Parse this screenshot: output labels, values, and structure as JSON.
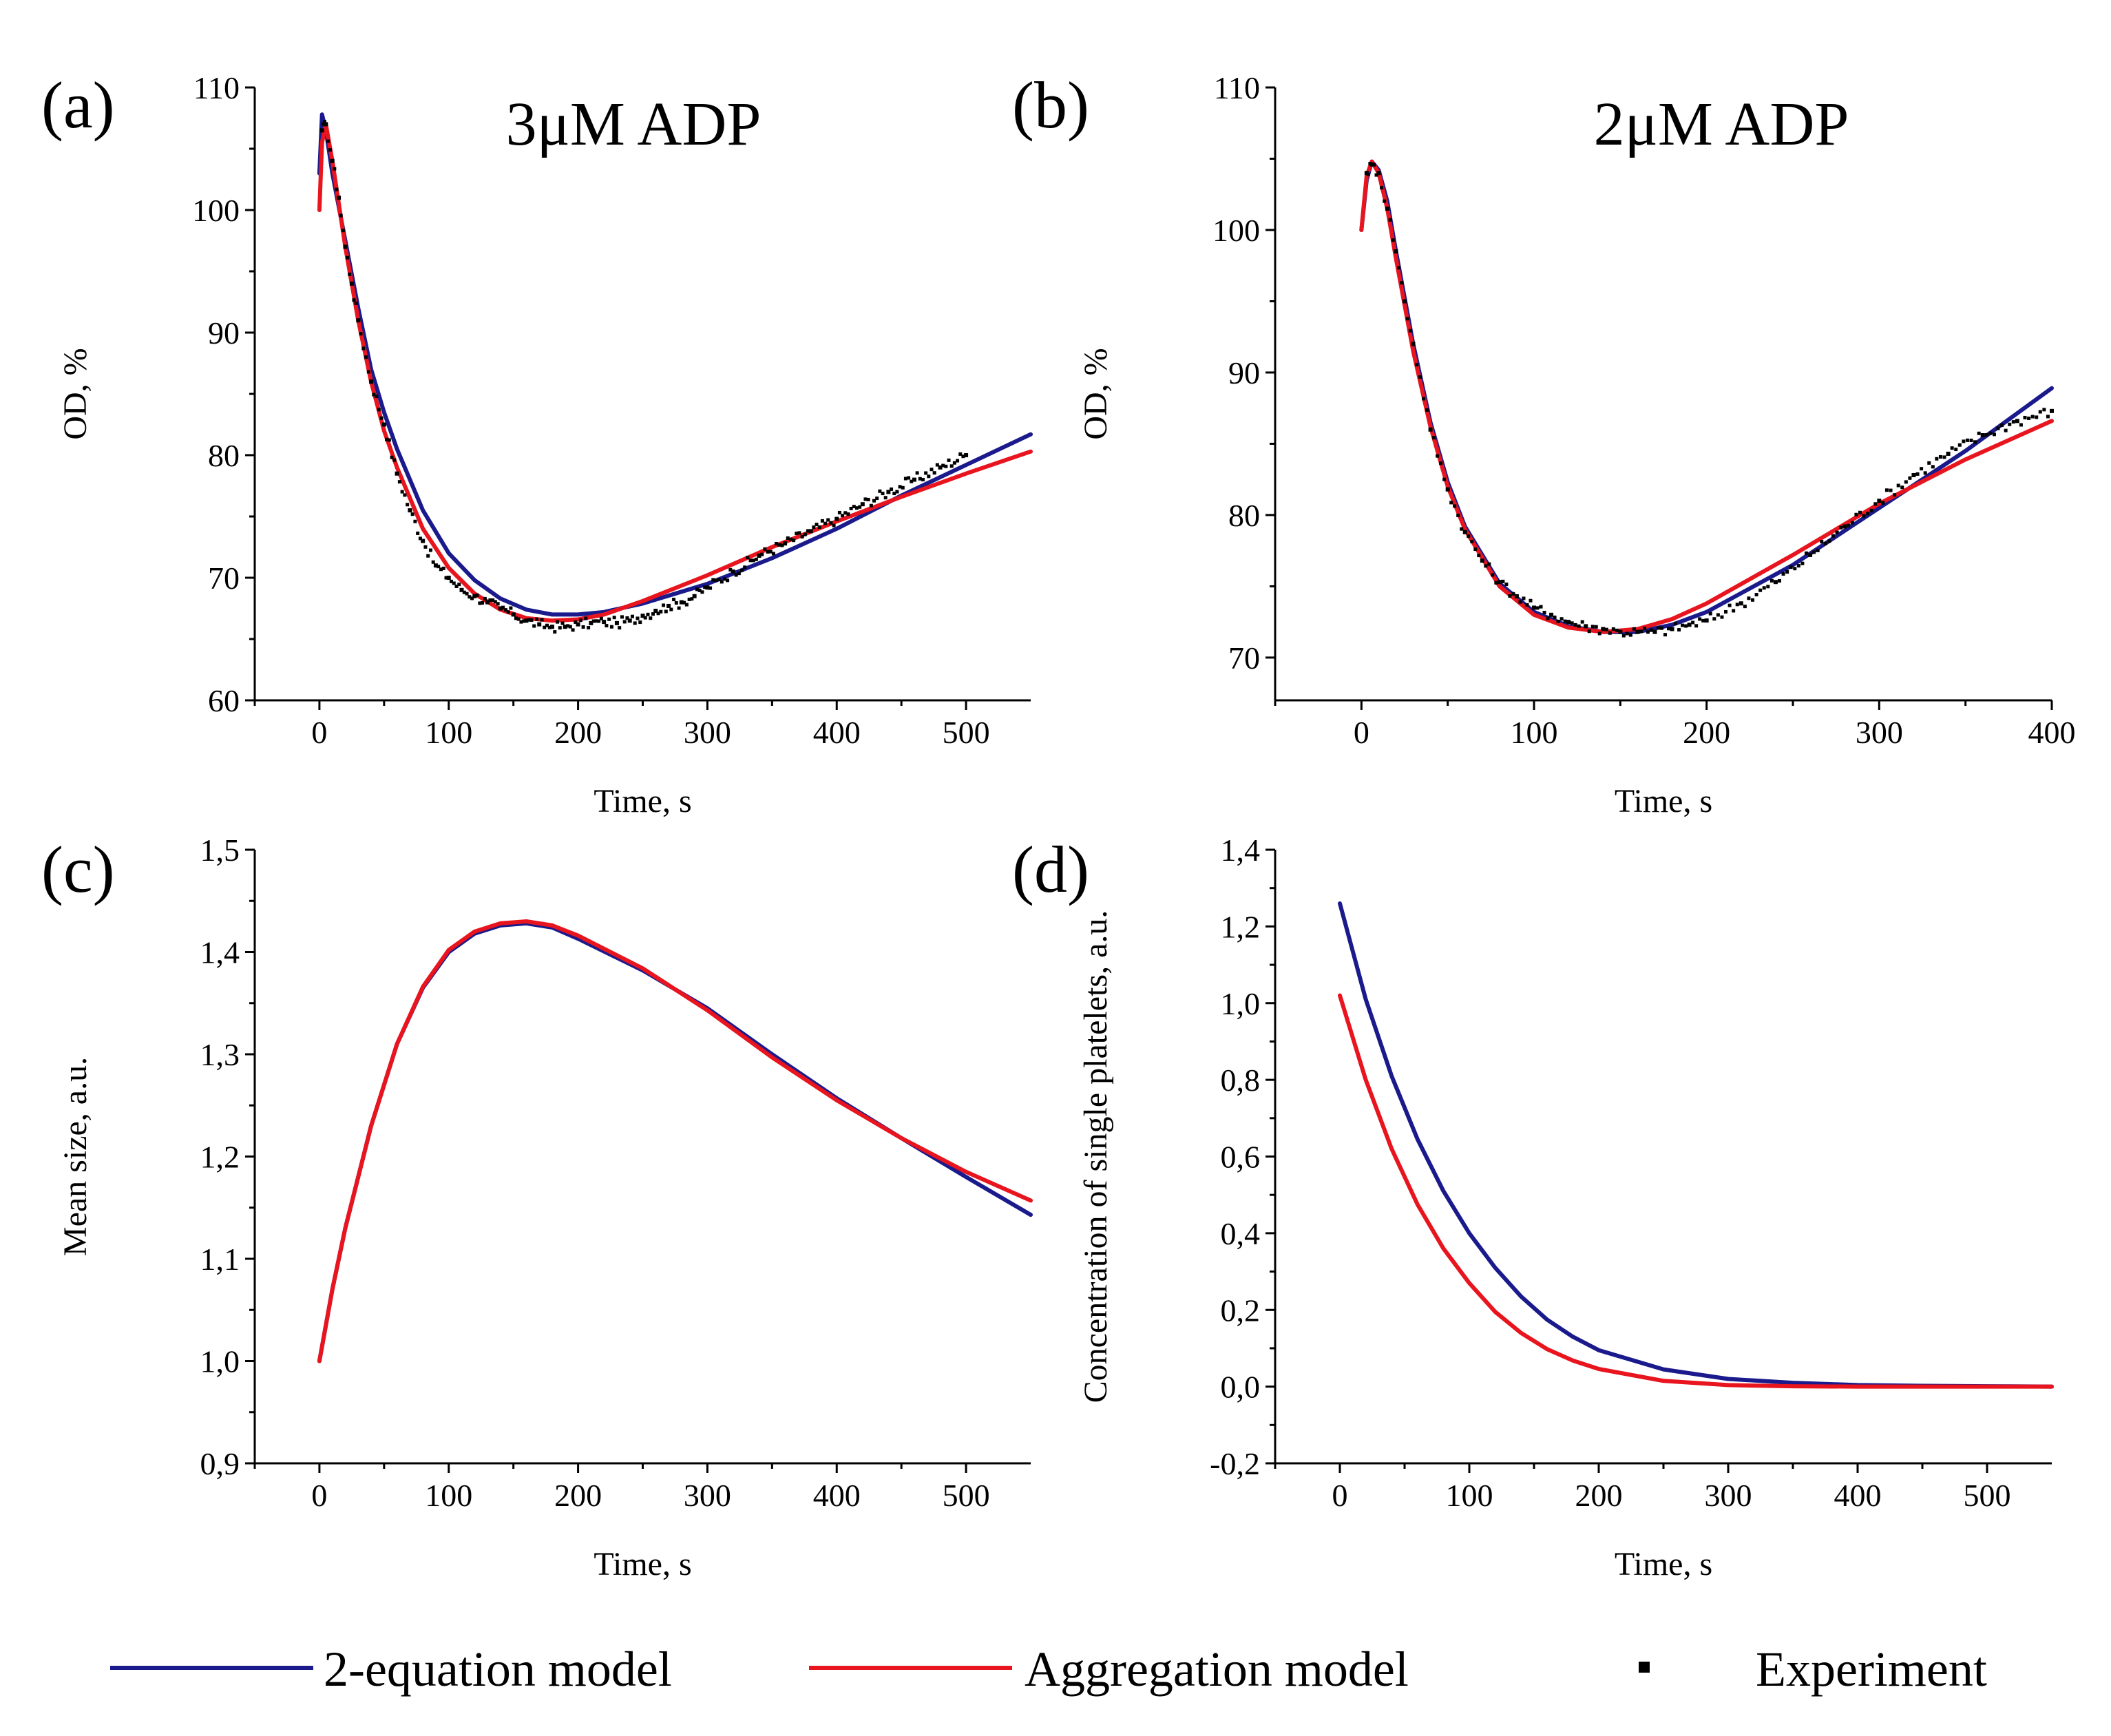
{
  "colors": {
    "blue": "#1a1a8c",
    "red": "#e8141e",
    "black": "#000000"
  },
  "legend": [
    {
      "label": "2-equation model",
      "color": "#1a1a8c",
      "kind": "line"
    },
    {
      "label": "Aggregation model",
      "color": "#e8141e",
      "kind": "line"
    },
    {
      "label": "Experiment",
      "color": "#000000",
      "kind": "marker"
    }
  ],
  "chart_data": [
    {
      "id": "a",
      "type": "line",
      "panel_label": "(a)",
      "title": "3μM ADP",
      "xlabel": "Time, s",
      "ylabel": "OD, %",
      "xlim": [
        -50,
        550
      ],
      "ylim": [
        60,
        110
      ],
      "xticks": [
        "0",
        "100",
        "200",
        "300",
        "400",
        "500"
      ],
      "yticks": [
        "60",
        "70",
        "80",
        "90",
        "100",
        "110"
      ],
      "series": [
        {
          "name": "2-equation model",
          "color": "#1a1a8c",
          "x": [
            0,
            2,
            5,
            10,
            20,
            30,
            40,
            50,
            60,
            80,
            100,
            120,
            140,
            160,
            180,
            200,
            220,
            250,
            300,
            350,
            400,
            450,
            500,
            550
          ],
          "y": [
            103,
            107.8,
            106.5,
            103,
            97.5,
            92,
            87,
            83.5,
            80.5,
            75.5,
            72,
            69.8,
            68.3,
            67.4,
            67,
            67,
            67.2,
            67.9,
            69.5,
            71.6,
            74,
            76.7,
            79.2,
            81.7
          ]
        },
        {
          "name": "Aggregation model",
          "color": "#e8141e",
          "x": [
            0,
            2,
            5,
            10,
            20,
            30,
            40,
            50,
            60,
            80,
            100,
            120,
            140,
            160,
            180,
            200,
            220,
            250,
            300,
            350,
            400,
            450,
            500,
            550
          ],
          "y": [
            100,
            105.5,
            107,
            104,
            97,
            91,
            86,
            82,
            79,
            74,
            70.8,
            68.7,
            67.4,
            66.7,
            66.5,
            66.6,
            67,
            68.1,
            70.2,
            72.5,
            74.6,
            76.6,
            78.5,
            80.3
          ]
        },
        {
          "name": "Experiment",
          "color": "#000000",
          "marker": "point",
          "x": [
            2,
            5,
            10,
            15,
            20,
            25,
            30,
            40,
            50,
            60,
            70,
            80,
            90,
            100,
            110,
            120,
            130,
            140,
            150,
            160,
            170,
            180,
            190,
            200,
            210,
            220,
            230,
            240,
            250,
            260,
            270,
            280,
            290,
            300,
            320,
            340,
            360,
            380,
            400,
            420,
            440,
            460,
            480,
            500
          ],
          "y": [
            106.5,
            107,
            104,
            101,
            97,
            94,
            91,
            86,
            82.5,
            78.5,
            75.5,
            73,
            71,
            70,
            69,
            68.5,
            68,
            67.5,
            67,
            66.5,
            66.2,
            66,
            66,
            66.2,
            66.3,
            66.4,
            66.3,
            66.5,
            66.9,
            67.3,
            67.7,
            68,
            68.5,
            69.2,
            70.5,
            71.8,
            72.8,
            73.8,
            74.8,
            76,
            77,
            78,
            79,
            80
          ]
        }
      ]
    },
    {
      "id": "b",
      "type": "line",
      "panel_label": "(b)",
      "title": "2μM ADP",
      "xlabel": "Time, s",
      "ylabel": "OD, %",
      "xlim": [
        -50,
        400
      ],
      "ylim": [
        67,
        110
      ],
      "xticks": [
        "0",
        "100",
        "200",
        "300",
        "400"
      ],
      "yticks": [
        "70",
        "80",
        "90",
        "100",
        "110"
      ],
      "series": [
        {
          "name": "2-equation model",
          "color": "#1a1a8c",
          "x": [
            0,
            3,
            6,
            10,
            15,
            20,
            30,
            40,
            50,
            60,
            80,
            100,
            120,
            140,
            160,
            180,
            200,
            250,
            300,
            350,
            400
          ],
          "y": [
            100,
            103.5,
            104.8,
            104.2,
            102,
            98.5,
            92,
            86.5,
            82.3,
            79.2,
            75.2,
            73.2,
            72.2,
            71.8,
            71.8,
            72.3,
            73.2,
            76.5,
            80.5,
            84.5,
            88.9
          ]
        },
        {
          "name": "Aggregation model",
          "color": "#e8141e",
          "x": [
            0,
            3,
            6,
            10,
            15,
            20,
            30,
            40,
            50,
            60,
            80,
            100,
            120,
            140,
            160,
            180,
            200,
            250,
            300,
            350,
            400
          ],
          "y": [
            100,
            103.8,
            104.8,
            104,
            101.5,
            98,
            91.5,
            86.2,
            82,
            79,
            75,
            73,
            72.1,
            71.8,
            72,
            72.7,
            73.8,
            77.2,
            80.8,
            83.9,
            86.6
          ]
        },
        {
          "name": "Experiment",
          "color": "#000000",
          "marker": "point",
          "x": [
            3,
            6,
            10,
            15,
            20,
            25,
            30,
            40,
            50,
            60,
            70,
            80,
            90,
            100,
            110,
            120,
            130,
            140,
            150,
            160,
            170,
            180,
            190,
            200,
            220,
            240,
            260,
            280,
            300,
            320,
            340,
            360,
            380,
            400
          ],
          "y": [
            104,
            104.6,
            104,
            101.5,
            98.5,
            95,
            92,
            86,
            81.8,
            78.8,
            76.8,
            75.3,
            74.3,
            73.5,
            73,
            72.5,
            72.2,
            72,
            71.8,
            71.8,
            71.8,
            72,
            72.3,
            72.6,
            73.8,
            75.3,
            77.2,
            79.2,
            81,
            82.8,
            84.3,
            85.6,
            86.6,
            87.3
          ]
        }
      ]
    },
    {
      "id": "c",
      "type": "line",
      "panel_label": "(c)",
      "title": "",
      "xlabel": "Time, s",
      "ylabel": "Mean size, a.u.",
      "xlim": [
        -50,
        550
      ],
      "ylim": [
        0.9,
        1.5
      ],
      "xticks": [
        "0",
        "100",
        "200",
        "300",
        "400",
        "500"
      ],
      "yticks": [
        "0,9",
        "1,0",
        "1,1",
        "1,2",
        "1,3",
        "1,4",
        "1,5"
      ],
      "series": [
        {
          "name": "2-equation model",
          "color": "#1a1a8c",
          "x": [
            0,
            10,
            20,
            40,
            60,
            80,
            100,
            120,
            140,
            160,
            180,
            200,
            250,
            300,
            350,
            400,
            450,
            500,
            550
          ],
          "y": [
            1.0,
            1.07,
            1.13,
            1.23,
            1.31,
            1.365,
            1.4,
            1.418,
            1.426,
            1.428,
            1.424,
            1.413,
            1.382,
            1.345,
            1.3,
            1.257,
            1.218,
            1.18,
            1.143
          ]
        },
        {
          "name": "Aggregation model",
          "color": "#e8141e",
          "x": [
            0,
            10,
            20,
            40,
            60,
            80,
            100,
            120,
            140,
            160,
            180,
            200,
            250,
            300,
            350,
            400,
            450,
            500,
            550
          ],
          "y": [
            1.0,
            1.07,
            1.13,
            1.23,
            1.31,
            1.366,
            1.402,
            1.42,
            1.428,
            1.43,
            1.426,
            1.416,
            1.384,
            1.343,
            1.297,
            1.255,
            1.218,
            1.185,
            1.157
          ]
        }
      ]
    },
    {
      "id": "d",
      "type": "line",
      "panel_label": "(d)",
      "title": "",
      "xlabel": "Time, s",
      "ylabel": "Concentration of single platelets, a.u.",
      "xlim": [
        -50,
        550
      ],
      "ylim": [
        -0.2,
        1.4
      ],
      "xticks": [
        "0",
        "100",
        "200",
        "300",
        "400",
        "500"
      ],
      "yticks": [
        "-0,2",
        "0,0",
        "0,2",
        "0,4",
        "0,6",
        "0,8",
        "1,0",
        "1,2",
        "1,4"
      ],
      "series": [
        {
          "name": "2-equation model",
          "color": "#1a1a8c",
          "x": [
            0,
            20,
            40,
            60,
            80,
            100,
            120,
            140,
            160,
            180,
            200,
            250,
            300,
            350,
            400,
            450,
            500,
            550
          ],
          "y": [
            1.26,
            1.01,
            0.81,
            0.645,
            0.51,
            0.4,
            0.31,
            0.235,
            0.175,
            0.13,
            0.095,
            0.045,
            0.02,
            0.01,
            0.004,
            0.002,
            0.001,
            0.0
          ]
        },
        {
          "name": "Aggregation model",
          "color": "#e8141e",
          "x": [
            0,
            20,
            40,
            60,
            80,
            100,
            120,
            140,
            160,
            180,
            200,
            250,
            300,
            350,
            400,
            450,
            500,
            550
          ],
          "y": [
            1.02,
            0.8,
            0.62,
            0.475,
            0.36,
            0.27,
            0.195,
            0.14,
            0.098,
            0.068,
            0.046,
            0.015,
            0.004,
            0.001,
            0.0,
            0.0,
            0.0,
            0.0
          ]
        }
      ]
    }
  ]
}
